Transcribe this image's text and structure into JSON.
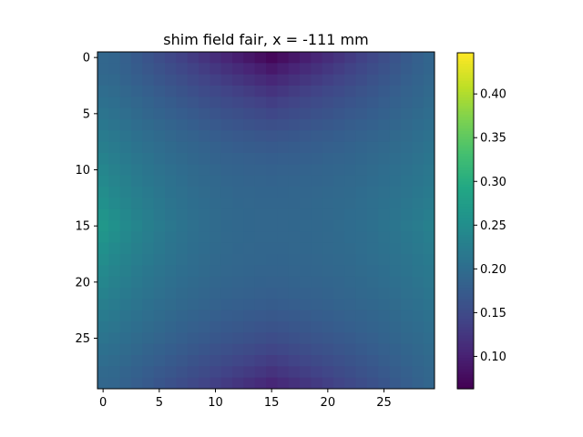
{
  "chart_data": {
    "type": "heatmap",
    "title": "shim field fair, x = -111 mm",
    "xlabel": "",
    "ylabel": "",
    "grid": false,
    "rows": 30,
    "cols": 30,
    "x_ticks": [
      0,
      5,
      10,
      15,
      20,
      25
    ],
    "y_ticks": [
      0,
      5,
      10,
      15,
      20,
      25
    ],
    "color_scale": {
      "colormap": "viridis",
      "vmin": 0.063,
      "vmax": 0.447,
      "ticks": [
        0.1,
        0.15,
        0.2,
        0.25,
        0.3,
        0.35,
        0.4
      ],
      "tick_labels": [
        "0.10",
        "0.15",
        "0.20",
        "0.25",
        "0.30",
        "0.35",
        "0.40"
      ]
    },
    "field_model": {
      "description_of_values": "approximate cell values read from colors",
      "base": 0.19,
      "left_edge_peak": 0.265,
      "right_edge_peak": 0.235,
      "top_edge_min": 0.07,
      "bottom_edge_min": 0.09,
      "center_row": 15,
      "center_col": 15
    }
  }
}
